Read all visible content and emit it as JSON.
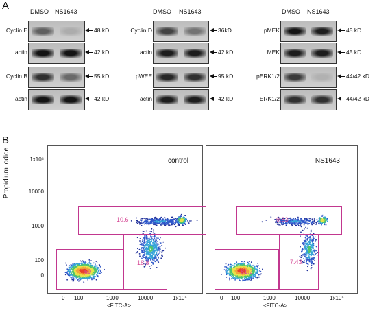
{
  "panel_a": {
    "letter": "A",
    "columns": [
      {
        "lanes": [
          "DMSO",
          "NS1643"
        ],
        "rows": [
          {
            "label": "Cyclin E",
            "size": "48 kD",
            "bands": [
              0.55,
              0.15
            ]
          },
          {
            "label": "actin",
            "size": "42 kD",
            "bands": [
              0.95,
              0.95
            ]
          },
          {
            "label": "Cyclin B",
            "size": "55 kD",
            "bands": [
              0.8,
              0.5
            ]
          },
          {
            "label": "actin",
            "size": "42 kD",
            "bands": [
              0.95,
              0.95
            ]
          }
        ]
      },
      {
        "lanes": [
          "DMSO",
          "NS1643"
        ],
        "rows": [
          {
            "label": "Cyclin D",
            "size": "36kD",
            "bands": [
              0.7,
              0.45
            ]
          },
          {
            "label": "actin",
            "size": "42 kD",
            "bands": [
              0.9,
              0.9
            ]
          },
          {
            "label": "pWEE",
            "size": "95 kD",
            "bands": [
              0.85,
              0.8
            ]
          },
          {
            "label": "actin",
            "size": "42 kD",
            "bands": [
              0.9,
              0.9
            ]
          }
        ]
      },
      {
        "lanes": [
          "DMSO",
          "NS1643"
        ],
        "rows": [
          {
            "label": "pMEK",
            "size": "45 kD",
            "bands": [
              0.95,
              0.9
            ]
          },
          {
            "label": "MEK",
            "size": "45 kD",
            "bands": [
              0.9,
              0.9
            ]
          },
          {
            "label": "pERK1/2",
            "size": "44/42 kD",
            "bands": [
              0.75,
              0.12
            ]
          },
          {
            "label": "ERK1/2",
            "size": "44/42 kD",
            "bands": [
              0.8,
              0.8
            ]
          }
        ]
      }
    ]
  },
  "panel_b": {
    "letter": "B",
    "y_axis_label": "Propidium iodide",
    "x_axis_label": "<FITC-A>",
    "y_ticks": [
      "1x10⁵",
      "10000",
      "1000",
      "100",
      "0"
    ],
    "x_ticks": [
      "0",
      "100",
      "1000",
      "10000",
      "1x10⁵"
    ],
    "plots": [
      {
        "title": "control",
        "gates": {
          "upper": "10.6",
          "lower_left": "69",
          "lower_right": "18.8"
        }
      },
      {
        "title": "NS1643",
        "gates": {
          "upper": "9.83",
          "lower_left": "81.2",
          "lower_right": "7.43"
        }
      }
    ]
  },
  "colors": {
    "gate": "#c2378f",
    "gate_label": "#d64a96"
  }
}
